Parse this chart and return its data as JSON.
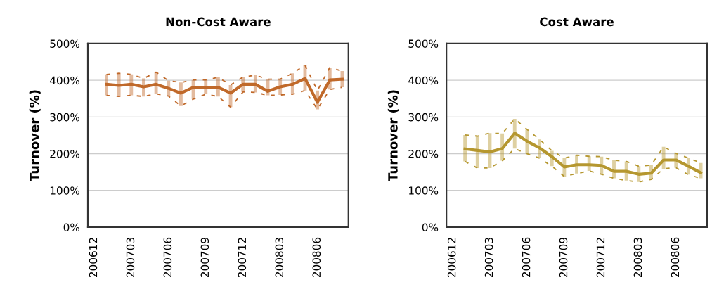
{
  "chart_data": [
    {
      "type": "line",
      "title": "Non-Cost Aware",
      "ylabel": "Turnover (%)",
      "categories": [
        "200612",
        null,
        null,
        "200703",
        null,
        null,
        "200706",
        null,
        null,
        "200709",
        null,
        null,
        "200712",
        null,
        null,
        "200803",
        null,
        null,
        "200806",
        null,
        null
      ],
      "series": [
        {
          "color": "#c0692a",
          "line_style": "dashed",
          "values": [
            null,
            416,
            419,
            416,
            405,
            422,
            399,
            394,
            401,
            401,
            408,
            387,
            409,
            414,
            403,
            403,
            419,
            441,
            372,
            435,
            425
          ]
        },
        {
          "color": "#c0692a",
          "line_style": "dashed",
          "values": [
            null,
            359,
            356,
            359,
            356,
            363,
            357,
            330,
            349,
            362,
            356,
            327,
            368,
            367,
            359,
            360,
            362,
            372,
            321,
            375,
            381
          ]
        },
        {
          "color": "#c0692a",
          "line_style": "solid",
          "values": [
            null,
            389,
            386,
            389,
            382,
            389,
            378,
            365,
            381,
            381,
            381,
            365,
            389,
            389,
            370,
            382,
            389,
            405,
            340,
            401,
            403
          ],
          "errors": [
            null,
            [
              359,
              416
            ],
            [
              356,
              419
            ],
            [
              359,
              416
            ],
            [
              356,
              405
            ],
            [
              363,
              422
            ],
            [
              357,
              399
            ],
            [
              330,
              394
            ],
            [
              349,
              401
            ],
            [
              362,
              401
            ],
            [
              356,
              408
            ],
            [
              327,
              387
            ],
            [
              368,
              409
            ],
            [
              367,
              414
            ],
            [
              359,
              403
            ],
            [
              360,
              403
            ],
            [
              362,
              419
            ],
            [
              372,
              441
            ],
            [
              321,
              372
            ],
            [
              375,
              435
            ],
            [
              381,
              425
            ]
          ]
        }
      ],
      "ylim": [
        0,
        500
      ],
      "yticks": [
        {
          "value": 0,
          "label": "0%"
        },
        {
          "value": 100,
          "label": "100%"
        },
        {
          "value": 200,
          "label": "200%"
        },
        {
          "value": 300,
          "label": "300%"
        },
        {
          "value": 400,
          "label": "400%"
        },
        {
          "value": 500,
          "label": "500%"
        }
      ],
      "grid": "y",
      "legend": false,
      "marker": "none"
    },
    {
      "type": "line",
      "title": "Cost Aware",
      "ylabel": "Turnover (%)",
      "categories": [
        "200612",
        null,
        null,
        "200703",
        null,
        null,
        "200706",
        null,
        null,
        "200709",
        null,
        null,
        "200712",
        null,
        null,
        "200803",
        null,
        null,
        "200806",
        null,
        null
      ],
      "series": [
        {
          "color": "#b5972f",
          "line_style": "dashed",
          "values": [
            null,
            251,
            248,
            256,
            255,
            295,
            266,
            239,
            208,
            188,
            196,
            193,
            192,
            182,
            179,
            166,
            169,
            219,
            201,
            188,
            175
          ]
        },
        {
          "color": "#b5972f",
          "line_style": "dashed",
          "values": [
            null,
            179,
            161,
            161,
            181,
            214,
            200,
            188,
            166,
            138,
            146,
            153,
            144,
            133,
            127,
            123,
            130,
            159,
            162,
            143,
            133
          ]
        },
        {
          "color": "#b5972f",
          "line_style": "solid",
          "values": [
            null,
            213,
            209,
            205,
            214,
            256,
            234,
            216,
            192,
            164,
            170,
            170,
            168,
            152,
            152,
            144,
            147,
            183,
            183,
            166,
            148
          ],
          "errors": [
            null,
            [
              179,
              251
            ],
            [
              161,
              248
            ],
            [
              161,
              256
            ],
            [
              181,
              255
            ],
            [
              214,
              295
            ],
            [
              200,
              266
            ],
            [
              188,
              239
            ],
            [
              166,
              208
            ],
            [
              138,
              188
            ],
            [
              146,
              196
            ],
            [
              153,
              193
            ],
            [
              144,
              192
            ],
            [
              133,
              182
            ],
            [
              127,
              179
            ],
            [
              123,
              166
            ],
            [
              130,
              169
            ],
            [
              159,
              219
            ],
            [
              162,
              201
            ],
            [
              143,
              188
            ],
            [
              133,
              175
            ]
          ]
        }
      ],
      "ylim": [
        0,
        500
      ],
      "yticks": [
        {
          "value": 0,
          "label": "0%"
        },
        {
          "value": 100,
          "label": "100%"
        },
        {
          "value": 200,
          "label": "200%"
        },
        {
          "value": 300,
          "label": "300%"
        },
        {
          "value": 400,
          "label": "400%"
        },
        {
          "value": 500,
          "label": "500%"
        }
      ],
      "grid": "y",
      "legend": false,
      "marker": "none"
    }
  ]
}
